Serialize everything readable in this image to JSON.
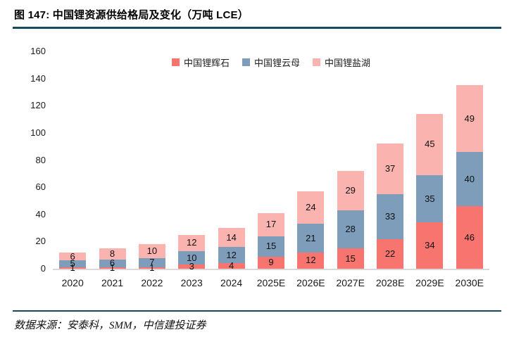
{
  "header": {
    "title": "图 147: 中国锂资源供给格局及变化（万吨 LCE）"
  },
  "footer": {
    "source": "数据来源：安泰科，SMM，中信建投证券"
  },
  "colors": {
    "rule": "#17495E",
    "axis_line": "#D9D9D9",
    "spodumene_red": "#F7756E",
    "mica_blue": "#7D9DBA",
    "saltlake_pink": "#FBB3B0"
  },
  "chart_data": {
    "type": "bar",
    "stacked": true,
    "title": "中国锂资源供给格局及变化（万吨 LCE）",
    "unit": "万吨 LCE",
    "categories": [
      "2020",
      "2021",
      "2022",
      "2023",
      "2024",
      "2025E",
      "2026E",
      "2027E",
      "2028E",
      "2029E",
      "2030E"
    ],
    "series": [
      {
        "name": "中国锂辉石",
        "color": "#F7756E",
        "values": [
          1,
          1,
          1,
          3,
          4,
          9,
          12,
          15,
          22,
          34,
          46
        ]
      },
      {
        "name": "中国锂云母",
        "color": "#7D9DBA",
        "values": [
          5,
          6,
          7,
          10,
          12,
          15,
          21,
          28,
          33,
          35,
          40
        ]
      },
      {
        "name": "中国锂盐湖",
        "color": "#FBB3B0",
        "values": [
          6,
          8,
          10,
          12,
          14,
          17,
          24,
          29,
          37,
          45,
          49
        ]
      }
    ],
    "stack_order_bottom_to_top": [
      "中国锂辉石",
      "中国锂云母",
      "中国锂盐湖"
    ],
    "totals": [
      12,
      15,
      18,
      25,
      30,
      41,
      57,
      72,
      92,
      114,
      135
    ],
    "ylim": [
      0,
      160
    ],
    "yticks": [
      0,
      20,
      40,
      60,
      80,
      100,
      120,
      140,
      160
    ],
    "grid": false,
    "legend_position": "top-center",
    "data_labels": true
  }
}
